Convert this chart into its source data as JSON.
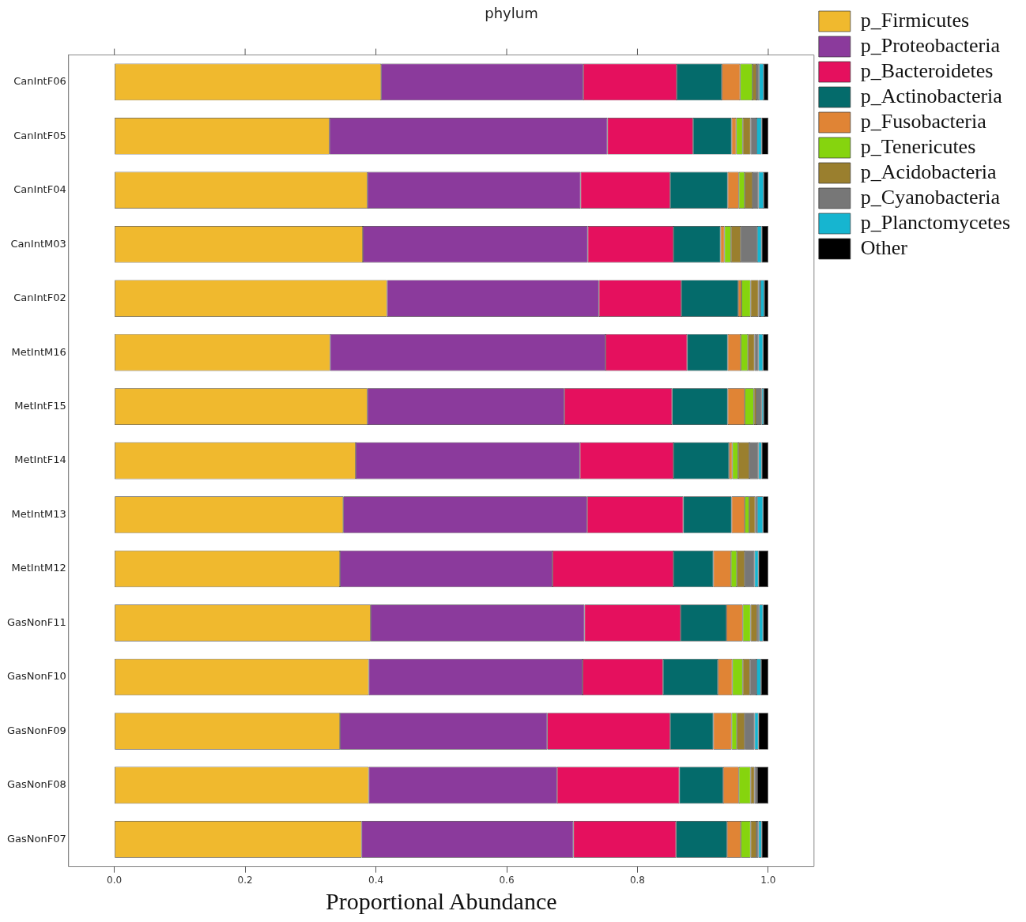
{
  "chart_data": {
    "type": "bar",
    "title": "phylum",
    "xlabel": "Proportional Abundance",
    "orientation": "horizontal",
    "stacked": true,
    "grid": false,
    "legend": "right",
    "xlim": [
      -0.07,
      1.07
    ],
    "xticks": [
      {
        "value": 0,
        "label": "0.0"
      },
      0.2,
      0.4,
      0.6,
      0.8,
      {
        "value": 1,
        "label": "1.0"
      }
    ],
    "categories": [
      "CanIntF06",
      "CanIntF05",
      "CanIntF04",
      "CanIntM03",
      "CanIntF02",
      "MetIntM16",
      "MetIntF15",
      "MetIntF14",
      "MetIntM13",
      "MetIntM12",
      "GasNonF11",
      "GasNonF10",
      "GasNonF09",
      "GasNonF08",
      "GasNonF07"
    ],
    "series": [
      {
        "name": "p_Firmicutes",
        "color": "#f0b92e",
        "values": [
          0.408,
          0.329,
          0.387,
          0.38,
          0.417,
          0.33,
          0.387,
          0.369,
          0.35,
          0.345,
          0.392,
          0.389,
          0.345,
          0.389,
          0.378
        ]
      },
      {
        "name": "p_Proteobacteria",
        "color": "#8b3a9c",
        "values": [
          0.309,
          0.425,
          0.326,
          0.344,
          0.324,
          0.421,
          0.301,
          0.343,
          0.373,
          0.325,
          0.327,
          0.327,
          0.317,
          0.288,
          0.324
        ]
      },
      {
        "name": "p_Bacteroidetes",
        "color": "#e5105e",
        "values": [
          0.143,
          0.131,
          0.137,
          0.131,
          0.126,
          0.125,
          0.165,
          0.143,
          0.147,
          0.185,
          0.147,
          0.123,
          0.188,
          0.187,
          0.157
        ]
      },
      {
        "name": "p_Actinobacteria",
        "color": "#046b6b",
        "values": [
          0.069,
          0.059,
          0.088,
          0.072,
          0.087,
          0.062,
          0.085,
          0.085,
          0.074,
          0.061,
          0.07,
          0.084,
          0.066,
          0.067,
          0.078
        ]
      },
      {
        "name": "p_Fusobacteria",
        "color": "#e08435",
        "values": [
          0.028,
          0.007,
          0.017,
          0.006,
          0.005,
          0.02,
          0.026,
          0.005,
          0.02,
          0.027,
          0.025,
          0.022,
          0.028,
          0.024,
          0.021
        ]
      },
      {
        "name": "p_Tenericutes",
        "color": "#86d40e",
        "values": [
          0.019,
          0.01,
          0.009,
          0.01,
          0.014,
          0.011,
          0.014,
          0.009,
          0.007,
          0.009,
          0.012,
          0.016,
          0.008,
          0.018,
          0.015
        ]
      },
      {
        "name": "p_Acidobacteria",
        "color": "#9a7f2e",
        "values": [
          0.006,
          0.012,
          0.012,
          0.015,
          0.012,
          0.01,
          0.004,
          0.017,
          0.009,
          0.012,
          0.01,
          0.011,
          0.012,
          0.006,
          0.009
        ]
      },
      {
        "name": "p_Cyanobacteria",
        "color": "#777777",
        "values": [
          0.004,
          0.009,
          0.009,
          0.025,
          0.003,
          0.006,
          0.008,
          0.014,
          0.003,
          0.015,
          0.003,
          0.01,
          0.015,
          0.003,
          0.003
        ]
      },
      {
        "name": "p_Planctomycetes",
        "color": "#16b5d0",
        "values": [
          0.007,
          0.008,
          0.008,
          0.007,
          0.006,
          0.007,
          0.003,
          0.005,
          0.009,
          0.006,
          0.006,
          0.007,
          0.006,
          0.001,
          0.005
        ]
      },
      {
        "name": "Other",
        "color": "#000000",
        "values": [
          0.007,
          0.01,
          0.007,
          0.01,
          0.006,
          0.008,
          0.007,
          0.01,
          0.008,
          0.015,
          0.008,
          0.011,
          0.015,
          0.017,
          0.01
        ]
      }
    ]
  }
}
